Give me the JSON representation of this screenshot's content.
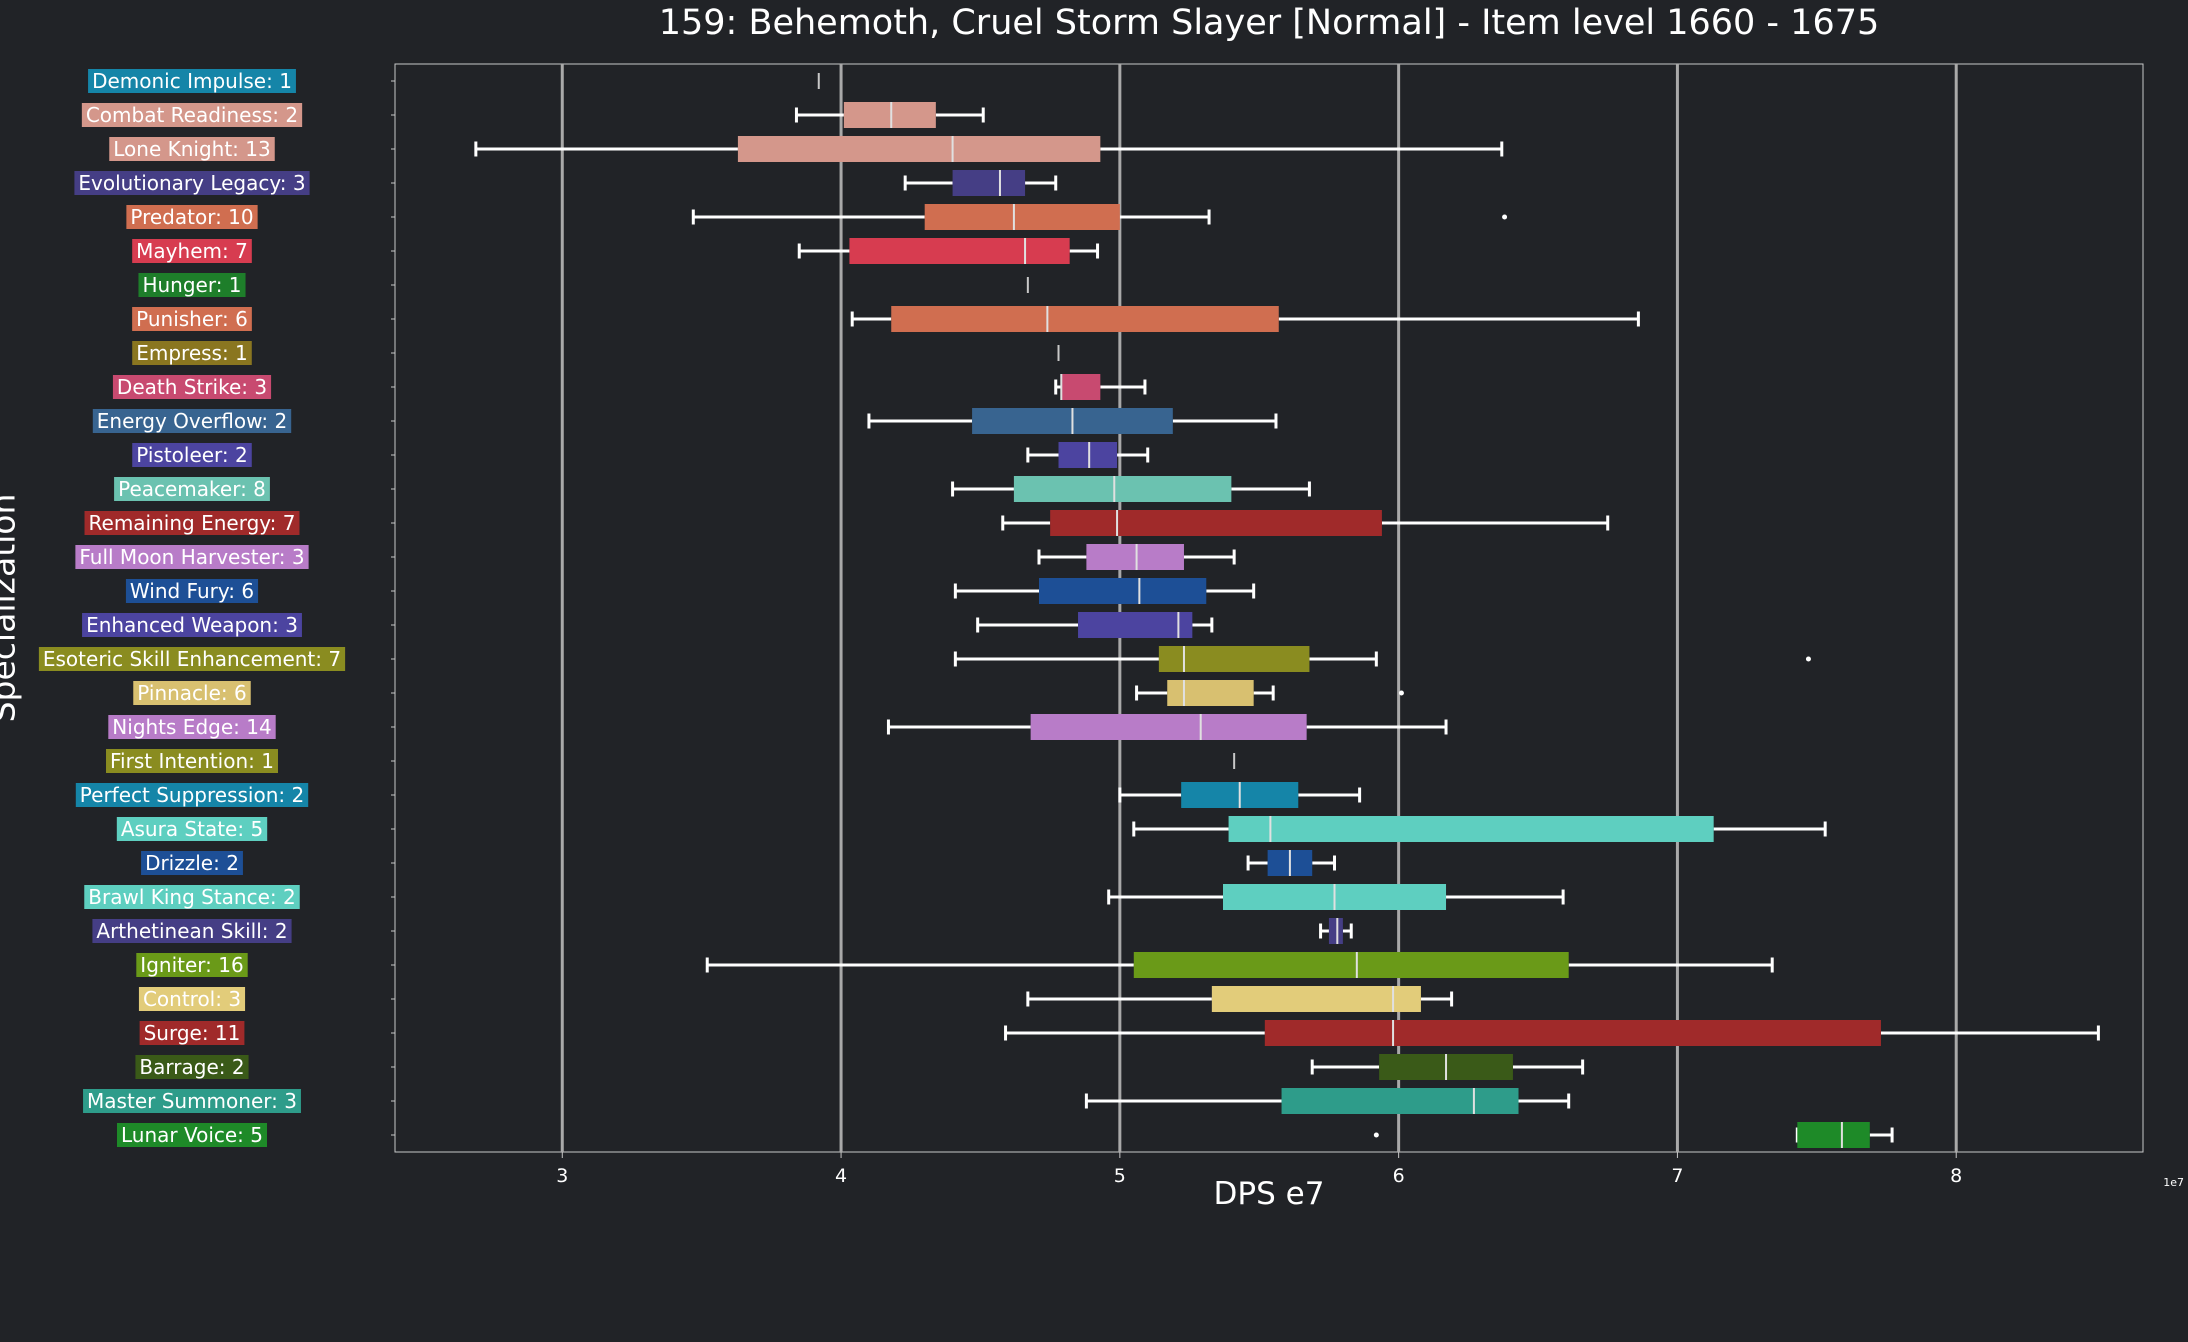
{
  "chart_data": {
    "type": "boxplot",
    "orientation": "horizontal",
    "title": "159: Behemoth, Cruel Storm Slayer [Normal] - Item level 1660 - 1675",
    "xlabel": "DPS e7",
    "ylabel": "Specialization",
    "x_exponent_label": "1e7",
    "xlim": [
      2.4,
      8.67
    ],
    "xticks": [
      3,
      4,
      5,
      6,
      7,
      8
    ],
    "xtick_labels": [
      "3",
      "4",
      "5",
      "6",
      "7",
      "8"
    ],
    "grid": "vertical lines at major ticks",
    "background": "#212327",
    "series": [
      {
        "label": "Demonic Impulse: 1",
        "color": "#1585a8",
        "whisker_low": 3.92,
        "q1": 3.92,
        "median": 3.92,
        "q3": 3.92,
        "whisker_high": 3.92,
        "outliers": []
      },
      {
        "label": "Combat Readiness: 2",
        "color": "#d4978b",
        "whisker_low": 3.84,
        "q1": 4.01,
        "median": 4.18,
        "q3": 4.34,
        "whisker_high": 4.51,
        "outliers": []
      },
      {
        "label": "Lone Knight: 13",
        "color": "#d4978b",
        "whisker_low": 2.69,
        "q1": 3.63,
        "median": 4.4,
        "q3": 4.93,
        "whisker_high": 6.37,
        "outliers": []
      },
      {
        "label": "Evolutionary Legacy: 3",
        "color": "#453e85",
        "whisker_low": 4.23,
        "q1": 4.4,
        "median": 4.57,
        "q3": 4.66,
        "whisker_high": 4.77,
        "outliers": []
      },
      {
        "label": "Predator: 10",
        "color": "#d06e50",
        "whisker_low": 3.47,
        "q1": 4.3,
        "median": 4.62,
        "q3": 5.0,
        "whisker_high": 5.32,
        "outliers": [
          6.38
        ]
      },
      {
        "label": "Mayhem: 7",
        "color": "#d73c50",
        "whisker_low": 3.85,
        "q1": 4.03,
        "median": 4.66,
        "q3": 4.82,
        "whisker_high": 4.92,
        "outliers": []
      },
      {
        "label": "Hunger: 1",
        "color": "#1e7e2a",
        "whisker_low": 4.67,
        "q1": 4.67,
        "median": 4.67,
        "q3": 4.67,
        "whisker_high": 4.67,
        "outliers": []
      },
      {
        "label": "Punisher: 6",
        "color": "#d06e50",
        "whisker_low": 4.04,
        "q1": 4.18,
        "median": 4.74,
        "q3": 5.57,
        "whisker_high": 6.86,
        "outliers": []
      },
      {
        "label": "Empress: 1",
        "color": "#8a7620",
        "whisker_low": 4.78,
        "q1": 4.78,
        "median": 4.78,
        "q3": 4.78,
        "whisker_high": 4.78,
        "outliers": []
      },
      {
        "label": "Death Strike: 3",
        "color": "#c84a70",
        "whisker_low": 4.77,
        "q1": 4.79,
        "median": 4.79,
        "q3": 4.93,
        "whisker_high": 5.09,
        "outliers": []
      },
      {
        "label": "Energy Overflow: 2",
        "color": "#386490",
        "whisker_low": 4.1,
        "q1": 4.47,
        "median": 4.83,
        "q3": 5.19,
        "whisker_high": 5.56,
        "outliers": []
      },
      {
        "label": "Pistoleer: 2",
        "color": "#4c44a0",
        "whisker_low": 4.67,
        "q1": 4.78,
        "median": 4.89,
        "q3": 4.99,
        "whisker_high": 5.1,
        "outliers": []
      },
      {
        "label": "Peacemaker: 8",
        "color": "#6bc2b0",
        "whisker_low": 4.4,
        "q1": 4.62,
        "median": 4.98,
        "q3": 5.4,
        "whisker_high": 5.68,
        "outliers": []
      },
      {
        "label": "Remaining Energy: 7",
        "color": "#a02a2a",
        "whisker_low": 4.58,
        "q1": 4.75,
        "median": 4.99,
        "q3": 5.94,
        "whisker_high": 6.75,
        "outliers": []
      },
      {
        "label": "Full Moon Harvester: 3",
        "color": "#b87cc8",
        "whisker_low": 4.71,
        "q1": 4.88,
        "median": 5.06,
        "q3": 5.23,
        "whisker_high": 5.41,
        "outliers": []
      },
      {
        "label": "Wind Fury: 6",
        "color": "#1d4f96",
        "whisker_low": 4.41,
        "q1": 4.71,
        "median": 5.07,
        "q3": 5.31,
        "whisker_high": 5.48,
        "outliers": []
      },
      {
        "label": "Enhanced Weapon: 3",
        "color": "#4c44a0",
        "whisker_low": 4.49,
        "q1": 4.85,
        "median": 5.21,
        "q3": 5.26,
        "whisker_high": 5.33,
        "outliers": []
      },
      {
        "label": "Esoteric Skill Enhancement: 7",
        "color": "#8a8c20",
        "whisker_low": 4.41,
        "q1": 5.14,
        "median": 5.23,
        "q3": 5.68,
        "whisker_high": 5.92,
        "outliers": [
          7.47
        ]
      },
      {
        "label": "Pinnacle: 6",
        "color": "#d8c070",
        "whisker_low": 5.06,
        "q1": 5.17,
        "median": 5.23,
        "q3": 5.48,
        "whisker_high": 5.55,
        "outliers": [
          6.01
        ]
      },
      {
        "label": "Nights Edge: 14",
        "color": "#b87cc8",
        "whisker_low": 4.17,
        "q1": 4.68,
        "median": 5.29,
        "q3": 5.67,
        "whisker_high": 6.17,
        "outliers": []
      },
      {
        "label": "First Intention: 1",
        "color": "#8a8c20",
        "whisker_low": 5.41,
        "q1": 5.41,
        "median": 5.41,
        "q3": 5.41,
        "whisker_high": 5.41,
        "outliers": []
      },
      {
        "label": "Perfect Suppression: 2",
        "color": "#1585a8",
        "whisker_low": 5.0,
        "q1": 5.22,
        "median": 5.43,
        "q3": 5.64,
        "whisker_high": 5.86,
        "outliers": []
      },
      {
        "label": "Asura State: 5",
        "color": "#5ecfc0",
        "whisker_low": 5.05,
        "q1": 5.39,
        "median": 5.54,
        "q3": 7.13,
        "whisker_high": 7.53,
        "outliers": []
      },
      {
        "label": "Drizzle: 2",
        "color": "#1d4f96",
        "whisker_low": 5.46,
        "q1": 5.53,
        "median": 5.61,
        "q3": 5.69,
        "whisker_high": 5.77,
        "outliers": []
      },
      {
        "label": "Brawl King Stance: 2",
        "color": "#5ecfc0",
        "whisker_low": 4.96,
        "q1": 5.37,
        "median": 5.77,
        "q3": 6.17,
        "whisker_high": 6.59,
        "outliers": []
      },
      {
        "label": "Arthetinean Skill: 2",
        "color": "#453e85",
        "whisker_low": 5.72,
        "q1": 5.75,
        "median": 5.78,
        "q3": 5.8,
        "whisker_high": 5.83,
        "outliers": []
      },
      {
        "label": "Igniter: 16",
        "color": "#6a9a18",
        "whisker_low": 3.52,
        "q1": 5.05,
        "median": 5.85,
        "q3": 6.61,
        "whisker_high": 7.34,
        "outliers": []
      },
      {
        "label": "Control: 3",
        "color": "#e2cc7a",
        "whisker_low": 4.67,
        "q1": 5.33,
        "median": 5.98,
        "q3": 6.08,
        "whisker_high": 6.19,
        "outliers": []
      },
      {
        "label": "Surge: 11",
        "color": "#a02a2a",
        "whisker_low": 4.59,
        "q1": 5.52,
        "median": 5.98,
        "q3": 7.73,
        "whisker_high": 8.51,
        "outliers": []
      },
      {
        "label": "Barrage: 2",
        "color": "#3a5a18",
        "whisker_low": 5.69,
        "q1": 5.93,
        "median": 6.17,
        "q3": 6.41,
        "whisker_high": 6.66,
        "outliers": []
      },
      {
        "label": "Master Summoner: 3",
        "color": "#2e9c8a",
        "whisker_low": 4.88,
        "q1": 5.58,
        "median": 6.27,
        "q3": 6.43,
        "whisker_high": 6.61,
        "outliers": []
      },
      {
        "label": "Lunar Voice: 5",
        "color": "#1e8a28",
        "whisker_low": 7.43,
        "q1": 7.43,
        "median": 7.59,
        "q3": 7.69,
        "whisker_high": 7.77,
        "outliers": [
          5.92
        ]
      }
    ]
  }
}
